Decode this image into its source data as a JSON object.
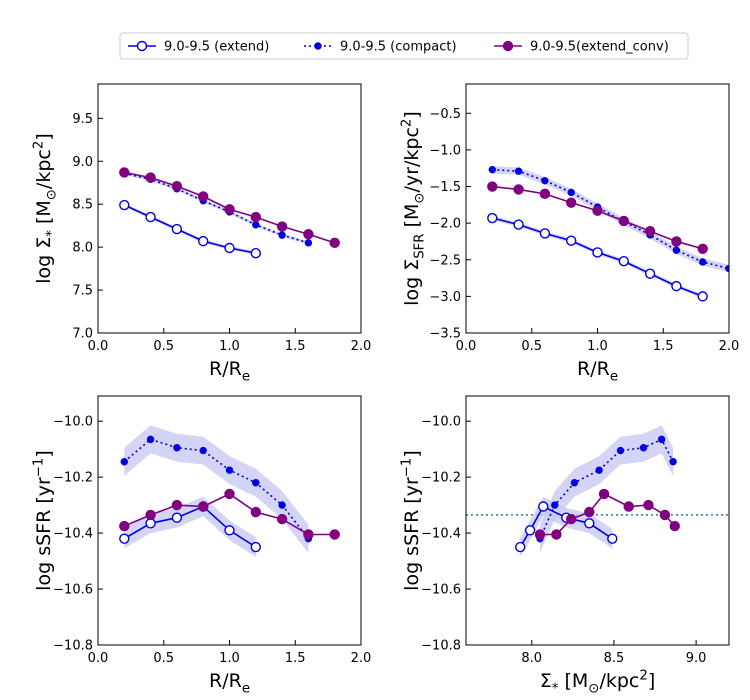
{
  "colors": {
    "extend": "#0000e0",
    "compact": "#0000e0",
    "conv": "#800080",
    "band": "#c9c9f5",
    "refline": "#1f77b4"
  },
  "legend": {
    "items": [
      {
        "label": "9.0-9.5 (extend)",
        "style": "extend"
      },
      {
        "label": "9.0-9.5 (compact)",
        "style": "compact"
      },
      {
        "label": "9.0-9.5(extend_conv)",
        "style": "conv"
      }
    ]
  },
  "chart_data": [
    {
      "type": "line",
      "panel": "top-left",
      "xlabel": "R/R",
      "xlabel_sub": "e",
      "ylabel_parts": [
        {
          "t": "log Σ"
        },
        {
          "t": "*",
          "sub": true
        },
        {
          "t": " [M"
        },
        {
          "t": "⊙",
          "sub": true
        },
        {
          "t": "/kpc"
        },
        {
          "t": "2",
          "sup": true
        },
        {
          "t": "]"
        }
      ],
      "xlim": [
        0.0,
        2.0
      ],
      "ylim": [
        7.0,
        9.9
      ],
      "xticks": [
        0.0,
        0.5,
        1.0,
        1.5,
        2.0
      ],
      "xtick_labels": [
        "0.0",
        "0.5",
        "1.0",
        "1.5",
        "2.0"
      ],
      "yticks": [
        7.0,
        7.5,
        8.0,
        8.5,
        9.0,
        9.5
      ],
      "ytick_labels": [
        "7.0",
        "7.5",
        "8.0",
        "8.5",
        "9.0",
        "9.5"
      ],
      "series": [
        {
          "name": "9.0-9.5 (extend)",
          "style": "extend",
          "x": [
            0.2,
            0.4,
            0.6,
            0.8,
            1.0,
            1.2
          ],
          "y": [
            8.49,
            8.35,
            8.21,
            8.07,
            7.99,
            7.93
          ],
          "err": [
            0.02,
            0.02,
            0.02,
            0.02,
            0.02,
            0.02
          ]
        },
        {
          "name": "9.0-9.5 (compact)",
          "style": "compact",
          "x": [
            0.2,
            0.4,
            0.6,
            0.8,
            1.0,
            1.2,
            1.4,
            1.6
          ],
          "y": [
            8.86,
            8.79,
            8.68,
            8.54,
            8.41,
            8.26,
            8.14,
            8.05
          ],
          "err": [
            0.02,
            0.02,
            0.02,
            0.02,
            0.02,
            0.02,
            0.02,
            0.02
          ]
        },
        {
          "name": "9.0-9.5(extend_conv)",
          "style": "conv",
          "x": [
            0.2,
            0.4,
            0.6,
            0.8,
            1.0,
            1.2,
            1.4,
            1.6,
            1.8
          ],
          "y": [
            8.87,
            8.81,
            8.71,
            8.59,
            8.44,
            8.35,
            8.24,
            8.15,
            8.05
          ]
        }
      ]
    },
    {
      "type": "line",
      "panel": "top-right",
      "xlabel": "R/R",
      "xlabel_sub": "e",
      "ylabel_parts": [
        {
          "t": "log Σ"
        },
        {
          "t": "SFR",
          "sub": true
        },
        {
          "t": " [M"
        },
        {
          "t": "⊙",
          "sub": true
        },
        {
          "t": "/yr/kpc"
        },
        {
          "t": "2",
          "sup": true
        },
        {
          "t": "]"
        }
      ],
      "xlim": [
        0.0,
        2.0
      ],
      "ylim": [
        -3.5,
        -0.1
      ],
      "xticks": [
        0.0,
        0.5,
        1.0,
        1.5,
        2.0
      ],
      "xtick_labels": [
        "0.0",
        "0.5",
        "1.0",
        "1.5",
        "2.0"
      ],
      "yticks": [
        -3.5,
        -3.0,
        -2.5,
        -2.0,
        -1.5,
        -1.0,
        -0.5
      ],
      "ytick_labels": [
        "−3.5",
        "−3.0",
        "−2.5",
        "−2.0",
        "−1.5",
        "−1.0",
        "−0.5"
      ],
      "series": [
        {
          "name": "9.0-9.5 (extend)",
          "style": "extend",
          "x": [
            0.2,
            0.4,
            0.6,
            0.8,
            1.0,
            1.2,
            1.4,
            1.6,
            1.8
          ],
          "y": [
            -1.93,
            -2.02,
            -2.14,
            -2.24,
            -2.4,
            -2.52,
            -2.69,
            -2.86,
            -3.0
          ],
          "err": [
            0.03,
            0.03,
            0.03,
            0.03,
            0.03,
            0.03,
            0.03,
            0.03,
            0.03
          ]
        },
        {
          "name": "9.0-9.5 (compact)",
          "style": "compact",
          "x": [
            0.2,
            0.4,
            0.6,
            0.8,
            1.0,
            1.2,
            1.4,
            1.6,
            1.8,
            2.0
          ],
          "y": [
            -1.27,
            -1.29,
            -1.42,
            -1.58,
            -1.78,
            -1.98,
            -2.16,
            -2.37,
            -2.53,
            -2.62
          ],
          "err": [
            0.05,
            0.05,
            0.05,
            0.05,
            0.05,
            0.05,
            0.05,
            0.05,
            0.05,
            0.05
          ]
        },
        {
          "name": "9.0-9.5(extend_conv)",
          "style": "conv",
          "x": [
            0.2,
            0.4,
            0.6,
            0.8,
            1.0,
            1.2,
            1.4,
            1.6,
            1.8
          ],
          "y": [
            -1.5,
            -1.54,
            -1.6,
            -1.72,
            -1.83,
            -1.97,
            -2.11,
            -2.25,
            -2.35
          ]
        }
      ]
    },
    {
      "type": "line",
      "panel": "bottom-left",
      "xlabel": "R/R",
      "xlabel_sub": "e",
      "ylabel_parts": [
        {
          "t": "log sSFR [yr"
        },
        {
          "t": "−1",
          "sup": true
        },
        {
          "t": "]"
        }
      ],
      "xlim": [
        0.0,
        2.0
      ],
      "ylim": [
        -10.8,
        -9.91
      ],
      "xticks": [
        0.0,
        0.5,
        1.0,
        1.5,
        2.0
      ],
      "xtick_labels": [
        "0.0",
        "0.5",
        "1.0",
        "1.5",
        "2.0"
      ],
      "yticks": [
        -10.8,
        -10.6,
        -10.4,
        -10.2,
        -10.0
      ],
      "ytick_labels": [
        "−10.8",
        "−10.6",
        "−10.4",
        "−10.2",
        "−10.0"
      ],
      "series": [
        {
          "name": "9.0-9.5 (extend)",
          "style": "extend",
          "x": [
            0.2,
            0.4,
            0.6,
            0.8,
            1.0,
            1.2
          ],
          "y": [
            -10.42,
            -10.365,
            -10.345,
            -10.305,
            -10.39,
            -10.45
          ],
          "err": [
            0.035,
            0.035,
            0.035,
            0.035,
            0.035,
            0.035
          ]
        },
        {
          "name": "9.0-9.5 (compact)",
          "style": "compact",
          "x": [
            0.2,
            0.4,
            0.6,
            0.8,
            1.0,
            1.2,
            1.4,
            1.6
          ],
          "y": [
            -10.145,
            -10.065,
            -10.095,
            -10.105,
            -10.175,
            -10.22,
            -10.3,
            -10.42
          ],
          "err": [
            0.05,
            0.05,
            0.05,
            0.05,
            0.05,
            0.05,
            0.05,
            0.05
          ]
        },
        {
          "name": "9.0-9.5(extend_conv)",
          "style": "conv",
          "x": [
            0.2,
            0.4,
            0.6,
            0.8,
            1.0,
            1.2,
            1.4,
            1.6,
            1.8
          ],
          "y": [
            -10.375,
            -10.335,
            -10.3,
            -10.305,
            -10.26,
            -10.325,
            -10.35,
            -10.405,
            -10.405
          ]
        }
      ]
    },
    {
      "type": "line",
      "panel": "bottom-right",
      "xlabel": "Σ",
      "xlabel_sub": "*",
      "xlabel_rest": " [M",
      "xlabel_sub2": "⊙",
      "xlabel_rest2": "/kpc",
      "xlabel_sup": "2",
      "xlabel_end": "]",
      "ylabel_parts": [
        {
          "t": "log sSFR [yr"
        },
        {
          "t": "−1",
          "sup": true
        },
        {
          "t": "]"
        }
      ],
      "xlim": [
        7.6,
        9.2
      ],
      "ylim": [
        -10.8,
        -9.91
      ],
      "xticks": [
        8.0,
        8.5,
        9.0
      ],
      "xtick_labels": [
        "8.0",
        "8.5",
        "9.0"
      ],
      "yticks": [
        -10.8,
        -10.6,
        -10.4,
        -10.2,
        -10.0
      ],
      "ytick_labels": [
        "−10.8",
        "−10.6",
        "−10.4",
        "−10.2",
        "−10.0"
      ],
      "hline": -10.335,
      "series": [
        {
          "name": "9.0-9.5 (extend)",
          "style": "extend",
          "x": [
            7.93,
            7.99,
            8.07,
            8.21,
            8.35,
            8.49
          ],
          "y": [
            -10.45,
            -10.39,
            -10.305,
            -10.345,
            -10.365,
            -10.42
          ],
          "err": [
            0.035,
            0.035,
            0.035,
            0.035,
            0.035,
            0.035
          ]
        },
        {
          "name": "9.0-9.5 (compact)",
          "style": "compact",
          "x": [
            8.05,
            8.14,
            8.26,
            8.41,
            8.54,
            8.68,
            8.79,
            8.86
          ],
          "y": [
            -10.42,
            -10.3,
            -10.22,
            -10.175,
            -10.105,
            -10.095,
            -10.065,
            -10.145
          ],
          "err": [
            0.05,
            0.05,
            0.05,
            0.05,
            0.05,
            0.05,
            0.05,
            0.05
          ]
        },
        {
          "name": "9.0-9.5(extend_conv)",
          "style": "conv",
          "x": [
            8.05,
            8.15,
            8.24,
            8.35,
            8.44,
            8.59,
            8.71,
            8.81,
            8.87
          ],
          "y": [
            -10.405,
            -10.405,
            -10.35,
            -10.325,
            -10.26,
            -10.305,
            -10.3,
            -10.335,
            -10.375
          ]
        }
      ]
    }
  ]
}
